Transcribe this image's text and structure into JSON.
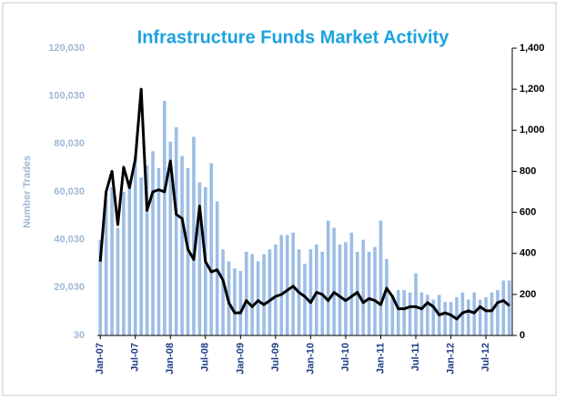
{
  "chart_data": {
    "type": "bar-line",
    "title": "Infrastructure Funds Market Activity",
    "y_label": "Number Trades",
    "categories": [
      "Jan-07",
      null,
      null,
      null,
      null,
      null,
      "Jul-07",
      null,
      null,
      null,
      null,
      null,
      "Jan-08",
      null,
      null,
      null,
      null,
      null,
      "Jul-08",
      null,
      null,
      null,
      null,
      null,
      "Jan-09",
      null,
      null,
      null,
      null,
      null,
      "Jul-09",
      null,
      null,
      null,
      null,
      null,
      "Jan-10",
      null,
      null,
      null,
      null,
      null,
      "Jul-10",
      null,
      null,
      null,
      null,
      null,
      "Jan-11",
      null,
      null,
      null,
      null,
      null,
      "Jul-11",
      null,
      null,
      null,
      null,
      null,
      "Jan-12",
      null,
      null,
      null,
      null,
      null,
      "Jul-12",
      null,
      null,
      null,
      null
    ],
    "series": [
      {
        "color": "#9dbde6",
        "kind": "bar",
        "axis": "y",
        "values": [
          40000,
          57000,
          62000,
          45000,
          60000,
          65000,
          75000,
          66000,
          71000,
          77000,
          70000,
          98000,
          81000,
          87000,
          75000,
          70000,
          83000,
          64000,
          62000,
          72000,
          56000,
          36000,
          31000,
          28000,
          27000,
          35000,
          34000,
          31000,
          34000,
          36000,
          38000,
          42000,
          42000,
          43000,
          36000,
          30000,
          36000,
          38000,
          35000,
          48000,
          45000,
          38000,
          39000,
          43000,
          35000,
          40000,
          35000,
          37000,
          48000,
          32000,
          17000,
          19000,
          19000,
          18000,
          26000,
          18000,
          17000,
          15000,
          17000,
          14000,
          14000,
          16000,
          18000,
          15000,
          18000,
          15000,
          16000,
          18000,
          19000,
          23000,
          23000
        ]
      },
      {
        "color": "#000000",
        "kind": "line",
        "axis": "y2",
        "values": [
          360,
          700,
          800,
          540,
          820,
          720,
          860,
          1200,
          610,
          700,
          710,
          700,
          850,
          590,
          570,
          420,
          370,
          630,
          360,
          310,
          320,
          270,
          160,
          110,
          110,
          170,
          140,
          170,
          150,
          170,
          190,
          200,
          220,
          240,
          210,
          190,
          160,
          210,
          200,
          170,
          210,
          190,
          170,
          190,
          210,
          160,
          180,
          170,
          150,
          230,
          190,
          130,
          130,
          140,
          140,
          130,
          160,
          140,
          100,
          110,
          100,
          80,
          110,
          120,
          110,
          140,
          120,
          120,
          160,
          170,
          145
        ]
      }
    ],
    "ylim": [
      30,
      120030
    ],
    "yticks": [
      30,
      {
        "value": 20030,
        "label": "20,030"
      },
      {
        "value": 40030,
        "label": "40,030"
      },
      {
        "value": 60030,
        "label": "60,030"
      },
      {
        "value": 80030,
        "label": "80,030"
      },
      {
        "value": 100030,
        "label": "100,030"
      },
      {
        "value": 120030,
        "label": "120,030"
      }
    ],
    "y2lim": [
      0,
      1400
    ],
    "y2ticks": [
      0,
      200,
      400,
      600,
      800,
      {
        "value": 1000,
        "label": "1,000"
      },
      {
        "value": 1200,
        "label": "1,200"
      },
      {
        "value": 1400,
        "label": "1,400"
      }
    ],
    "title_color": "#1ba3de",
    "y_color": "#9db8d8",
    "x_color": "#1f3c88"
  }
}
